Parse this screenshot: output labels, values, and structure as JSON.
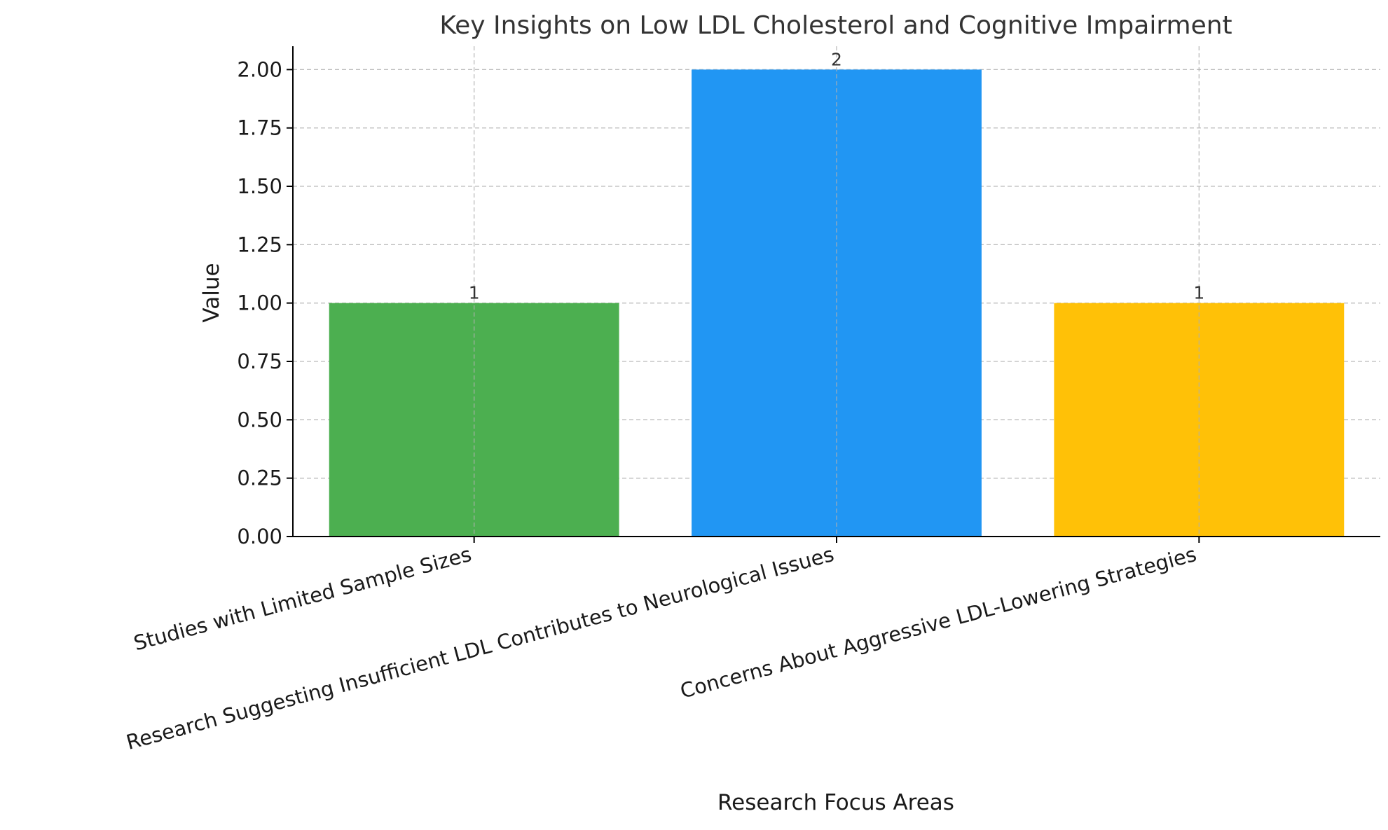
{
  "chart_data": {
    "type": "bar",
    "title": "Key Insights on Low LDL Cholesterol and Cognitive Impairment",
    "xlabel": "Research Focus Areas",
    "ylabel": "Value",
    "categories": [
      "Studies with Limited Sample Sizes",
      "Research Suggesting Insufficient LDL Contributes to Neurological Issues",
      "Concerns About Aggressive LDL-Lowering Strategies"
    ],
    "values": [
      1,
      2,
      1
    ],
    "data_labels": [
      "1",
      "2",
      "1"
    ],
    "colors": [
      "#4caf50",
      "#2196f3",
      "#ffc107"
    ],
    "ylim": [
      0,
      2.1
    ],
    "yticks": [
      0.0,
      0.25,
      0.5,
      0.75,
      1.0,
      1.25,
      1.5,
      1.75,
      2.0
    ],
    "ytick_labels": [
      "0.00",
      "0.25",
      "0.50",
      "0.75",
      "1.00",
      "1.25",
      "1.50",
      "1.75",
      "2.00"
    ],
    "grid": true,
    "legend": "none"
  }
}
